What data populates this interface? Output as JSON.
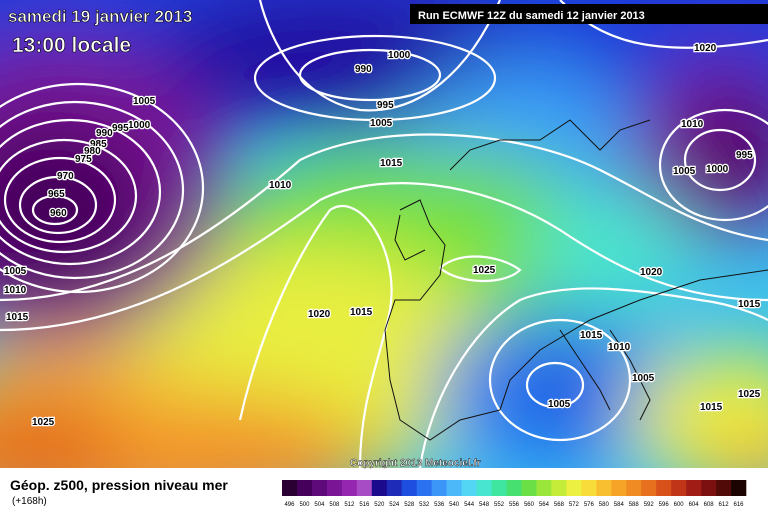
{
  "header": {
    "date": "samedi 19 janvier 2013",
    "time": "13:00 locale",
    "run": "Run ECMWF 12Z du samedi 12 janvier 2013"
  },
  "copyright": "Copyright 2013 Meteociel.fr",
  "footer": {
    "title": "Géop. z500, pression niveau mer",
    "lead": "(+168h)"
  },
  "isobar_labels": [
    990,
    1000,
    995,
    1005,
    1005,
    1000,
    995,
    990,
    985,
    980,
    975,
    970,
    965,
    960,
    1015,
    1010,
    1005,
    1010,
    1015,
    1020,
    1015,
    1025,
    1020,
    1015,
    1010,
    1005,
    1005,
    1015,
    1015,
    1025,
    1010,
    995,
    1005,
    1000,
    1025,
    1020
  ],
  "colorbar": {
    "labels": [
      496,
      500,
      504,
      508,
      512,
      516,
      520,
      524,
      528,
      532,
      536,
      540,
      544,
      548,
      552,
      556,
      560,
      564,
      568,
      572,
      576,
      580,
      584,
      588,
      592,
      596,
      600,
      604,
      608,
      612,
      616
    ],
    "colors": [
      "#2a0033",
      "#44005a",
      "#5e0a7a",
      "#7a1696",
      "#9426b0",
      "#a84cc6",
      "#1c0a8c",
      "#1e2ab8",
      "#1e4ee0",
      "#2a72f0",
      "#3c96f8",
      "#4cb8fa",
      "#52d6f4",
      "#48e6d0",
      "#3ee6a0",
      "#46e070",
      "#6ae046",
      "#9ae63a",
      "#c6ec3a",
      "#ecf040",
      "#f8dc3a",
      "#f8c030",
      "#f6a428",
      "#f08a22",
      "#e6701e",
      "#d8501a",
      "#c03418",
      "#a01c14",
      "#7c1010",
      "#520a08",
      "#1c0402"
    ]
  }
}
